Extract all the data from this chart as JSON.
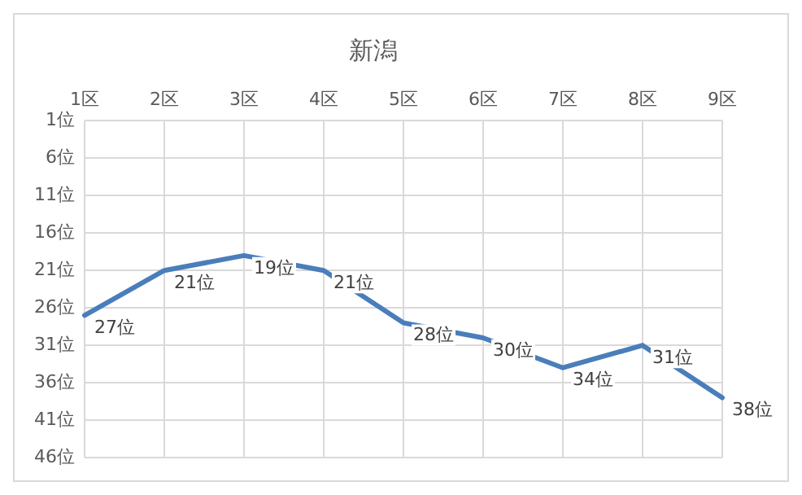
{
  "chart_data": {
    "type": "line",
    "title": "新潟",
    "categories": [
      "1区",
      "2区",
      "3区",
      "4区",
      "5区",
      "6区",
      "7区",
      "8区",
      "9区"
    ],
    "series": [
      {
        "color": "#4a7ebb",
        "values": [
          27,
          21,
          19,
          21,
          28,
          30,
          34,
          31,
          38
        ]
      }
    ],
    "value_labels": [
      "27位",
      "21位",
      "19位",
      "21位",
      "28位",
      "30位",
      "34位",
      "31位",
      "38位"
    ],
    "ylim": [
      46,
      1
    ],
    "yticks": [
      {
        "value": 1,
        "label": "1位"
      },
      {
        "value": 6,
        "label": "6位"
      },
      {
        "value": 11,
        "label": "11位"
      },
      {
        "value": 16,
        "label": "16位"
      },
      {
        "value": 21,
        "label": "21位"
      },
      {
        "value": 26,
        "label": "26位"
      },
      {
        "value": 31,
        "label": "31位"
      },
      {
        "value": 36,
        "label": "36位"
      },
      {
        "value": 41,
        "label": "41位"
      },
      {
        "value": 46,
        "label": "46位"
      }
    ],
    "grid": true,
    "legend": false,
    "marker": "none",
    "line_style": "solid"
  }
}
